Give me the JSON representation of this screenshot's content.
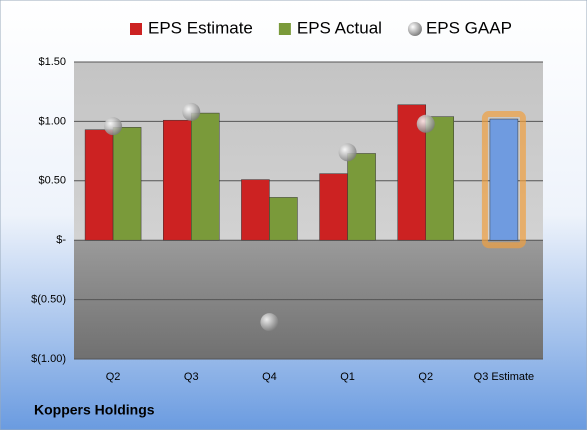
{
  "chart_data": {
    "type": "bar",
    "categories": [
      "Q2",
      "Q3",
      "Q4",
      "Q1",
      "Q2",
      "Q3 Estimate"
    ],
    "series": [
      {
        "name": "EPS Estimate",
        "color": "#cc2222",
        "values": [
          0.93,
          1.01,
          0.51,
          0.56,
          1.14,
          null
        ]
      },
      {
        "name": "EPS Actual",
        "color": "#7a9a3a",
        "values": [
          0.95,
          1.07,
          0.36,
          0.73,
          1.04,
          null
        ]
      },
      {
        "name": "EPS GAAP",
        "color": "#9a9a9a",
        "marker": "circle",
        "values": [
          0.96,
          1.08,
          -0.69,
          0.74,
          0.98,
          null
        ]
      },
      {
        "color": "#6f9be0",
        "values": [
          null,
          null,
          null,
          null,
          null,
          1.02
        ]
      }
    ],
    "ylim": [
      -1.0,
      1.5
    ],
    "yticks": [
      {
        "value": -1.0,
        "label": "$(1.00)"
      },
      {
        "value": -0.5,
        "label": "$(0.50)"
      },
      {
        "value": 0,
        "label": "$-"
      },
      {
        "value": 0.5,
        "label": "$0.50"
      },
      {
        "value": 1.0,
        "label": "$1.00"
      },
      {
        "value": 1.5,
        "label": "$1.50"
      }
    ],
    "grid": true,
    "footer": "Koppers Holdings"
  }
}
